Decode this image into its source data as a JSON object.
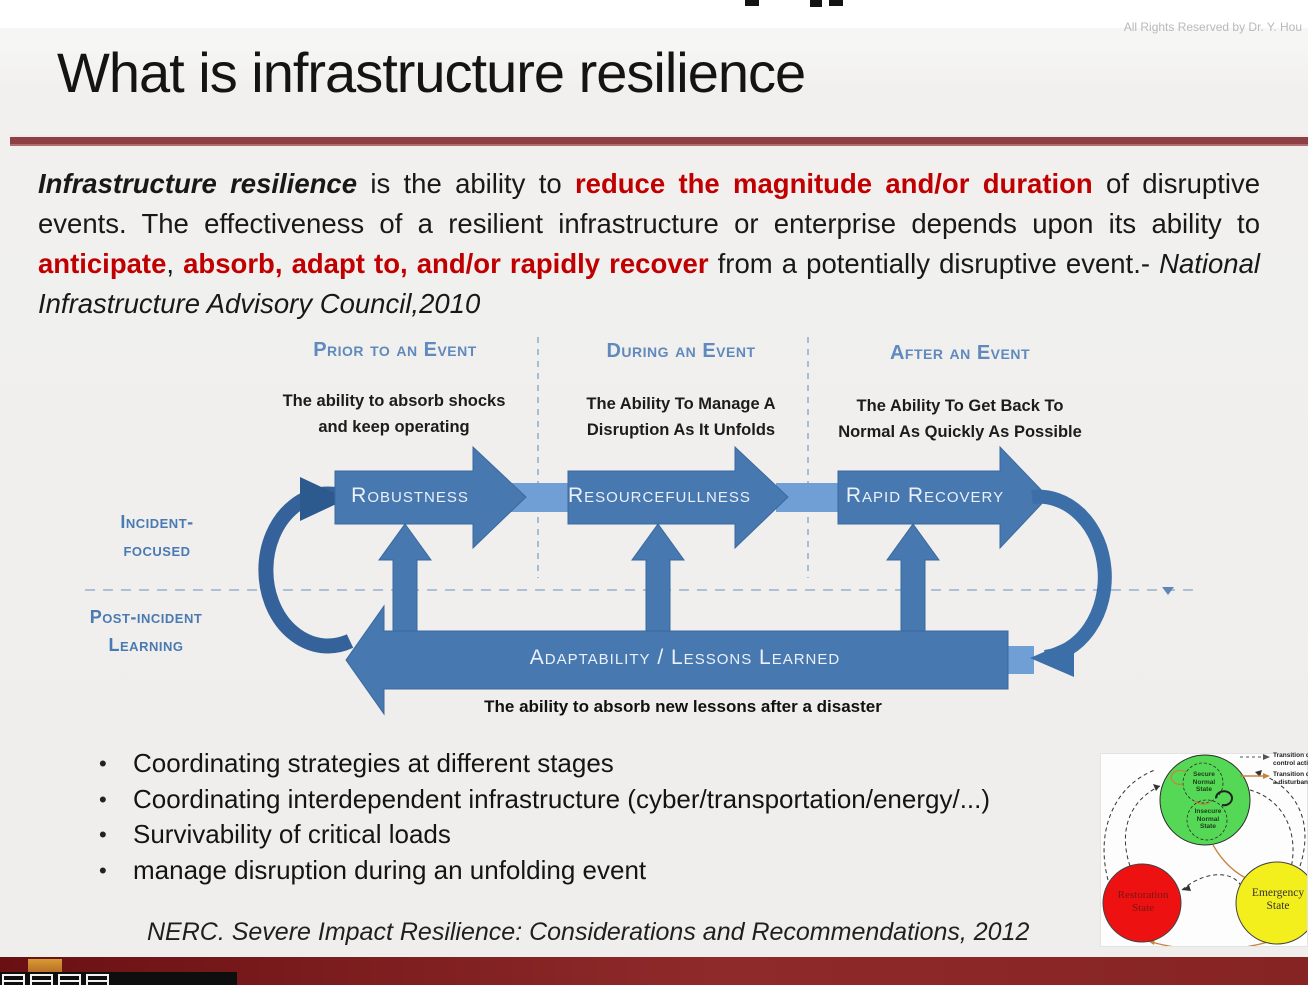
{
  "window": {
    "copyright": "All Rights Reserved by Dr. Y. Hou"
  },
  "slide": {
    "title": "What is infrastructure resilience",
    "definition_segments": [
      {
        "text": "Infrastructure resilience",
        "style": "bi"
      },
      {
        "text": " is the ability to ",
        "style": "plain"
      },
      {
        "text": "reduce the magnitude and/or duration",
        "style": "red"
      },
      {
        "text": " of disruptive events. The effectiveness of a resilient infrastructure or enterprise depends upon its ability to ",
        "style": "plain"
      },
      {
        "text": "anticipate",
        "style": "red"
      },
      {
        "text": ", ",
        "style": "plain"
      },
      {
        "text": "absorb, adapt to, and/or rapidly recover",
        "style": "red"
      },
      {
        "text": " from a potentially disruptive event.- ",
        "style": "plain"
      },
      {
        "text": "National Infrastructure Advisory Council,2010",
        "style": "it"
      }
    ],
    "bullets": [
      "Coordinating strategies at different stages",
      "Coordinating interdependent infrastructure (cyber/transportation/energy/...)",
      "Survivability of critical loads",
      "manage disruption during an unfolding event"
    ],
    "citation": "NERC. Severe Impact Resilience: Considerations and Recommendations, 2012"
  },
  "diagram": {
    "phases": [
      {
        "header": "Prior to an Event",
        "desc_lines": [
          "The ability to absorb shocks",
          "and keep operating"
        ]
      },
      {
        "header": "During an Event",
        "desc_lines": [
          "The Ability To Manage A",
          "Disruption As It Unfolds"
        ]
      },
      {
        "header": "After an Event",
        "desc_lines": [
          "The Ability To Get Back To",
          "Normal As Quickly As Possible"
        ]
      }
    ],
    "flow_arrows": [
      {
        "label": "Robustness"
      },
      {
        "label": "Resourcefullness"
      },
      {
        "label": "Rapid  Recovery"
      }
    ],
    "feedback_arrow_label": "Adaptability / Lessons Learned",
    "left_labels": {
      "incident_lines": [
        "Incident-",
        "focused"
      ],
      "post_incident_lines": [
        "Post-incident",
        "Learning"
      ]
    },
    "footer_note": "The ability to absorb new lessons after a disaster"
  },
  "state_diagram": {
    "states": [
      {
        "name": "Secure Normal State",
        "lines": [
          "Secure",
          "Normal",
          "State"
        ],
        "color": "#55d855"
      },
      {
        "name": "Insecure Normal State",
        "lines": [
          "Insecure",
          "Normal",
          "State"
        ],
        "color": "#55d855"
      },
      {
        "name": "Restoration State",
        "lines": [
          "Restoration",
          "State"
        ],
        "color": "#ee1111"
      },
      {
        "name": "Emergency State",
        "lines": [
          "Emergency",
          "State"
        ],
        "color": "#f3ef1d"
      }
    ],
    "legend": [
      {
        "lines": [
          "Transition due",
          "control action"
        ],
        "style": "dashed-black"
      },
      {
        "lines": [
          "Transition due",
          "a disturbance"
        ],
        "style": "solid-orange"
      }
    ]
  },
  "colors": {
    "accent_blue": "#4878b0",
    "light_blue": "#6f9fd4",
    "loop_blue": "#35629a",
    "header_blue": "#6089bd",
    "side_label_blue": "#4a7ab2",
    "red_text": "#c00000",
    "separator_maroon": "#8d3f44",
    "bottom_bar_maroon": "#7c1a1c"
  }
}
